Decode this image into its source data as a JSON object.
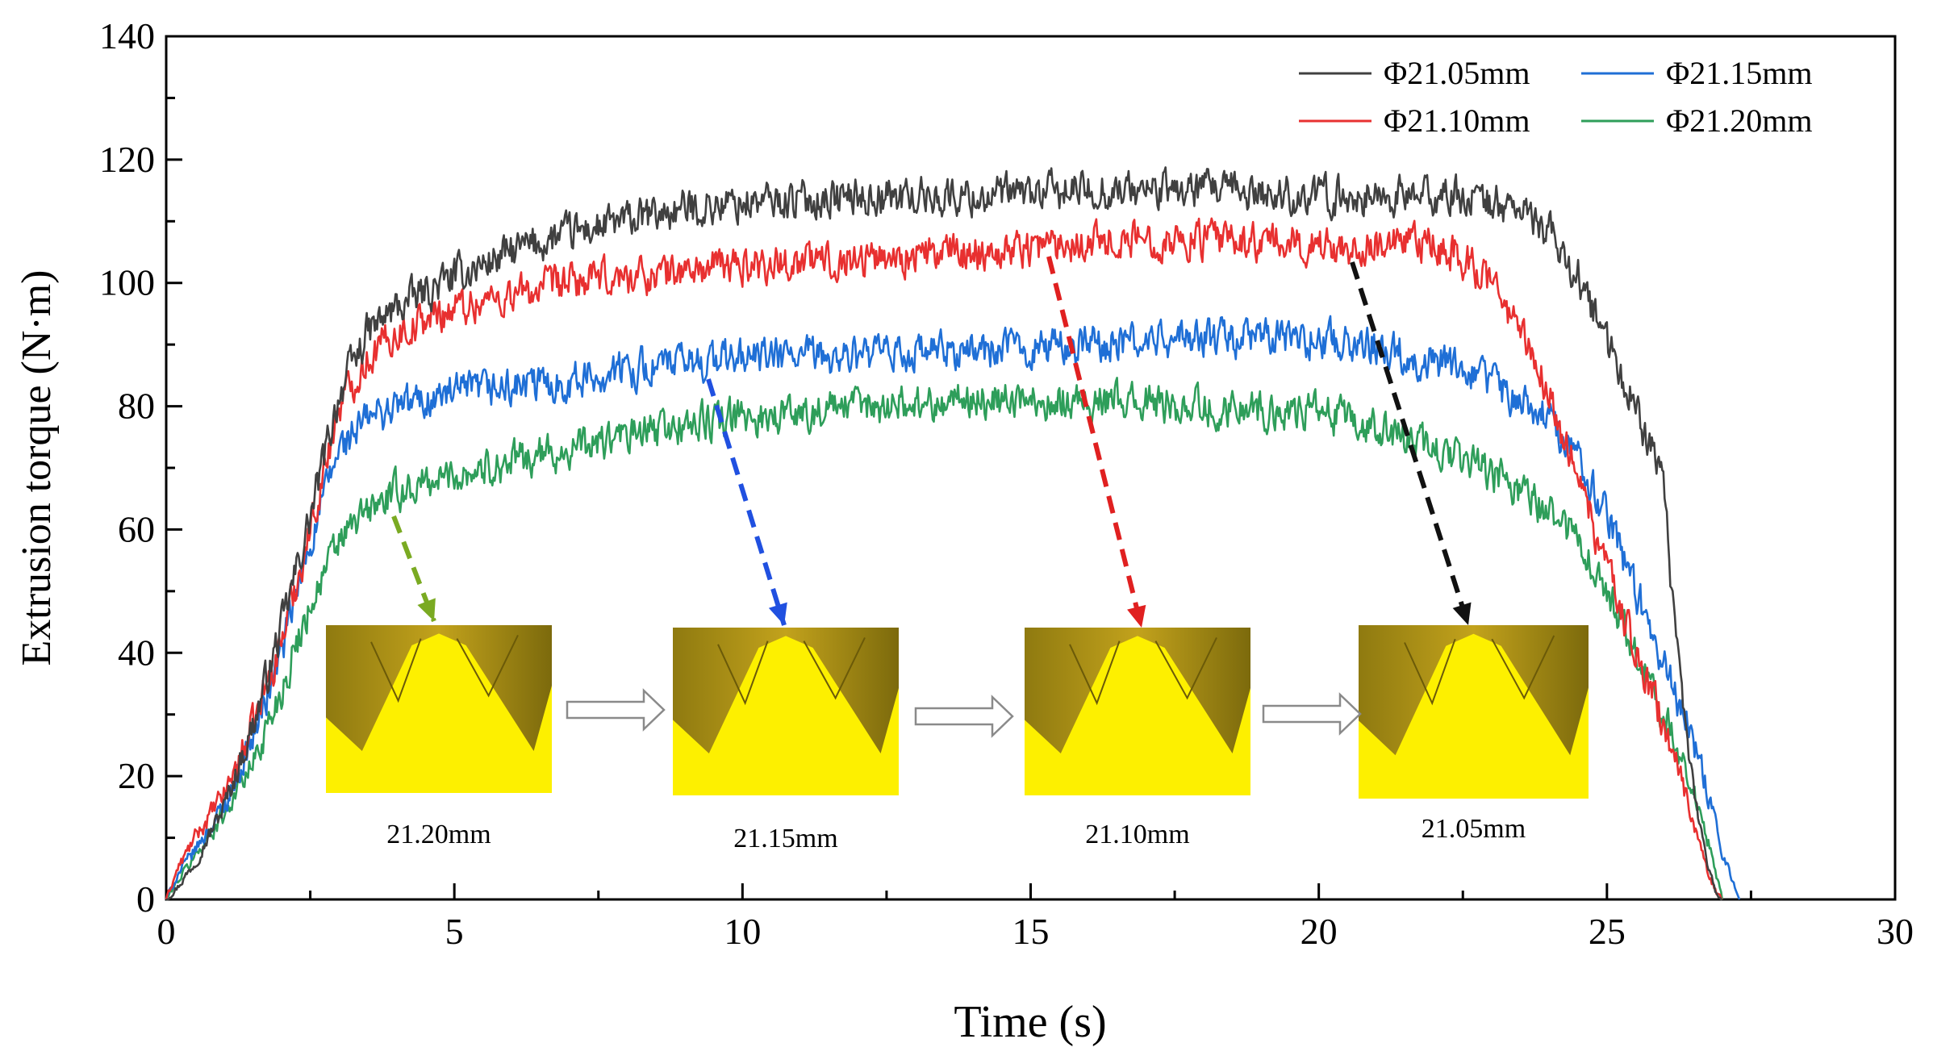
{
  "chart_data": {
    "type": "line",
    "title": "",
    "xlabel": "Time (s)",
    "ylabel": "Extrusion torque (N·m)",
    "xlim": [
      0,
      30
    ],
    "ylim": [
      0,
      140
    ],
    "xticks": [
      0,
      5,
      10,
      15,
      20,
      25,
      30
    ],
    "yticks": [
      0,
      20,
      40,
      60,
      80,
      100,
      120,
      140
    ],
    "grid": false,
    "legend_position": "top-right",
    "series": [
      {
        "name": "Φ21.05mm",
        "color": "#404040",
        "x": [
          0,
          0.2,
          0.5,
          1.0,
          1.5,
          2.0,
          2.5,
          3.0,
          3.5,
          4.0,
          5.0,
          6.0,
          7.0,
          8.0,
          9.0,
          10.0,
          12.0,
          14.0,
          16.0,
          18.0,
          20.0,
          22.0,
          22.5,
          23.0,
          23.5,
          24.0,
          24.5,
          25.0,
          25.5,
          25.8,
          26.0,
          26.2,
          26.4,
          26.6,
          26.8,
          26.9,
          27.0
        ],
        "y": [
          0,
          2,
          6,
          15,
          28,
          44,
          62,
          82,
          92,
          96,
          101,
          105,
          108,
          110,
          112,
          113,
          114,
          114,
          115,
          115,
          114,
          114,
          114,
          113,
          112,
          108,
          101,
          90,
          80,
          72,
          66,
          40,
          25,
          12,
          4,
          1,
          0
        ]
      },
      {
        "name": "Φ21.10mm",
        "color": "#e83030",
        "x": [
          0,
          0.2,
          0.5,
          1.0,
          1.5,
          2.0,
          2.5,
          3.0,
          3.5,
          4.0,
          5.0,
          6.0,
          7.0,
          8.0,
          9.0,
          10.0,
          12.0,
          14.0,
          16.0,
          18.0,
          20.0,
          22.0,
          22.5,
          23.0,
          23.5,
          24.0,
          24.5,
          25.0,
          25.5,
          26.0,
          26.4,
          26.7,
          26.9,
          27.0
        ],
        "y": [
          0,
          5,
          10,
          17,
          28,
          42,
          60,
          80,
          88,
          92,
          96,
          98,
          100,
          101,
          102,
          103,
          104,
          105,
          107,
          107,
          106,
          106,
          104,
          100,
          92,
          82,
          68,
          54,
          40,
          28,
          16,
          6,
          1,
          0
        ]
      },
      {
        "name": "Φ21.15mm",
        "color": "#1f6fd6",
        "x": [
          0,
          0.2,
          0.5,
          1.0,
          1.5,
          2.0,
          2.5,
          3.0,
          3.5,
          4.0,
          5.0,
          6.0,
          7.0,
          8.0,
          9.0,
          10.0,
          12.0,
          14.0,
          16.0,
          18.0,
          20.0,
          21.0,
          22.0,
          23.0,
          24.0,
          24.5,
          25.0,
          25.5,
          26.0,
          26.5,
          26.8,
          27.0,
          27.2,
          27.3
        ],
        "y": [
          0,
          4,
          8,
          15,
          26,
          40,
          58,
          73,
          78,
          80,
          82,
          83,
          84,
          86,
          87,
          88,
          88,
          89,
          90,
          91,
          91,
          90,
          87,
          84,
          78,
          72,
          62,
          50,
          38,
          26,
          16,
          8,
          3,
          0
        ]
      },
      {
        "name": "Φ21.20mm",
        "color": "#2e9e5a",
        "x": [
          0,
          0.2,
          0.5,
          1.0,
          1.5,
          2.0,
          2.5,
          3.0,
          3.5,
          4.0,
          5.0,
          6.0,
          7.0,
          8.0,
          9.0,
          10.0,
          12.0,
          14.0,
          16.0,
          18.0,
          20.0,
          21.0,
          22.0,
          23.0,
          24.0,
          24.5,
          25.0,
          25.5,
          26.0,
          26.5,
          26.8,
          27.0
        ],
        "y": [
          0,
          3,
          7,
          14,
          22,
          34,
          48,
          58,
          63,
          66,
          69,
          71,
          73,
          75,
          77,
          78,
          80,
          81,
          81,
          80,
          79,
          76,
          73,
          69,
          63,
          58,
          50,
          40,
          30,
          18,
          8,
          0
        ]
      }
    ],
    "insets": [
      {
        "label": "21.20mm",
        "arrow_color": "#7aaa22"
      },
      {
        "label": "21.15mm",
        "arrow_color": "#2050e0"
      },
      {
        "label": "21.10mm",
        "arrow_color": "#e02020"
      },
      {
        "label": "21.05mm",
        "arrow_color": "#111111"
      }
    ]
  }
}
